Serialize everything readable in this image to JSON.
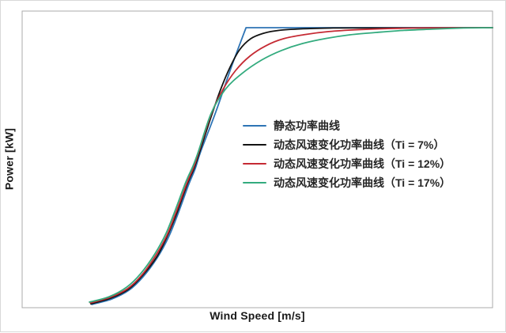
{
  "chart_data": {
    "type": "line",
    "title": "",
    "xlabel": "Wind Speed [m/s]",
    "ylabel": "Power [kW]",
    "x_ticks": [],
    "y_ticks": [],
    "grid": false,
    "legend_position": "center-right",
    "point_units": "percent-of-plot-area, x from left, y from bottom",
    "plateau_power_percent": 94.4,
    "series": [
      {
        "name": "静态功率曲线",
        "color": "#2E74B5",
        "segments": [
          {
            "smooth": true,
            "points": [
              [
                14.8,
                1.1
              ],
              [
                19.0,
                2.9
              ],
              [
                22.7,
                5.9
              ],
              [
                25.7,
                10.4
              ],
              [
                28.7,
                16.8
              ],
              [
                31.1,
                23.7
              ],
              [
                33.1,
                31.5
              ],
              [
                35.3,
                41.1
              ],
              [
                36.8,
                46.9
              ],
              [
                38.0,
                52.8
              ],
              [
                41.2,
                66.1
              ],
              [
                44.4,
                80.8
              ],
              [
                47.6,
                94.4
              ]
            ]
          },
          {
            "smooth": false,
            "points": [
              [
                47.6,
                94.4
              ],
              [
                100,
                94.4
              ]
            ]
          }
        ]
      },
      {
        "name": "动态风速变化功率曲线（Ti = 7%）",
        "color": "#131313",
        "segments": [
          {
            "smooth": true,
            "points": [
              [
                14.6,
                1.3
              ],
              [
                18.8,
                3.2
              ],
              [
                22.5,
                6.1
              ],
              [
                25.5,
                10.7
              ],
              [
                28.6,
                17.1
              ],
              [
                30.9,
                24.3
              ],
              [
                32.9,
                32.0
              ],
              [
                35.1,
                41.6
              ],
              [
                36.6,
                47.2
              ],
              [
                37.8,
                52.8
              ],
              [
                40.2,
                64.5
              ],
              [
                42.2,
                73.6
              ],
              [
                44.2,
                81.1
              ],
              [
                46.2,
                86.9
              ],
              [
                48.6,
                90.7
              ],
              [
                51.3,
                92.5
              ],
              [
                54.6,
                93.5
              ],
              [
                59.3,
                94.0
              ],
              [
                66.1,
                94.3
              ]
            ]
          },
          {
            "smooth": false,
            "points": [
              [
                66.1,
                94.3
              ],
              [
                100,
                94.4
              ]
            ]
          }
        ]
      },
      {
        "name": "动态风速变化功率曲线（Ti = 12%）",
        "color": "#C52A33",
        "segments": [
          {
            "smooth": true,
            "points": [
              [
                14.5,
                1.6
              ],
              [
                18.7,
                3.5
              ],
              [
                22.4,
                6.4
              ],
              [
                25.4,
                10.9
              ],
              [
                28.4,
                17.6
              ],
              [
                30.8,
                24.5
              ],
              [
                32.8,
                32.5
              ],
              [
                35.0,
                41.9
              ],
              [
                36.5,
                47.5
              ],
              [
                37.6,
                52.8
              ],
              [
                40.2,
                65.3
              ],
              [
                42.7,
                73.6
              ],
              [
                45.4,
                80.0
              ],
              [
                48.4,
                84.8
              ],
              [
                51.8,
                88.3
              ],
              [
                55.6,
                90.7
              ],
              [
                60.2,
                92.1
              ],
              [
                65.2,
                93.1
              ],
              [
                71.1,
                93.7
              ],
              [
                77.8,
                94.1
              ],
              [
                84.5,
                94.3
              ]
            ]
          },
          {
            "smooth": false,
            "points": [
              [
                84.5,
                94.3
              ],
              [
                100,
                94.4
              ]
            ]
          }
        ]
      },
      {
        "name": "动态风速变化功率曲线（Ti = 17%）",
        "color": "#33AB7E",
        "segments": [
          {
            "smooth": true,
            "points": [
              [
                14.3,
                1.9
              ],
              [
                18.5,
                3.7
              ],
              [
                22.2,
                6.9
              ],
              [
                25.2,
                11.5
              ],
              [
                28.2,
                18.1
              ],
              [
                30.6,
                25.1
              ],
              [
                32.6,
                33.1
              ],
              [
                34.8,
                42.4
              ],
              [
                36.3,
                47.7
              ],
              [
                37.5,
                52.8
              ],
              [
                40.2,
                65.6
              ],
              [
                43.2,
                73.6
              ],
              [
                46.7,
                78.9
              ],
              [
                50.9,
                83.5
              ],
              [
                55.1,
                86.7
              ],
              [
                59.7,
                89.1
              ],
              [
                64.7,
                90.8
              ],
              [
                69.7,
                92.0
              ],
              [
                75.3,
                92.8
              ],
              [
                81.2,
                93.5
              ],
              [
                87.1,
                93.9
              ],
              [
                93.8,
                94.3
              ]
            ]
          },
          {
            "smooth": false,
            "points": [
              [
                93.8,
                94.3
              ],
              [
                100,
                94.4
              ]
            ]
          }
        ]
      }
    ]
  },
  "colors": {
    "outer_frame": "#d8d8d8",
    "plot_border": "#ababab",
    "axis_text": "#1a1a1a",
    "legend_text": "#262626"
  }
}
